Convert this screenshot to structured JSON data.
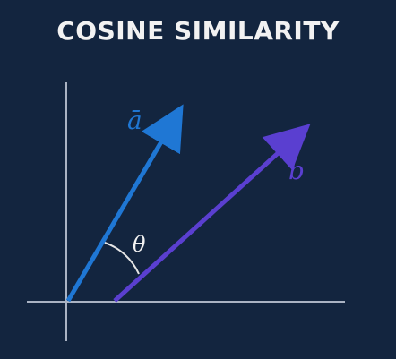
{
  "title": "COSINE SIMILARITY",
  "labels": {
    "vector_a": "ā",
    "vector_b": "b",
    "angle": "θ"
  },
  "colors": {
    "background": "#13253f",
    "title_text": "#f2f2f2",
    "axes": "#aab3c3",
    "vector_a": "#1f77d4",
    "vector_b": "#5a3fd0",
    "angle_arc": "#e6e6e6",
    "angle_label": "#f2f2f2"
  }
}
